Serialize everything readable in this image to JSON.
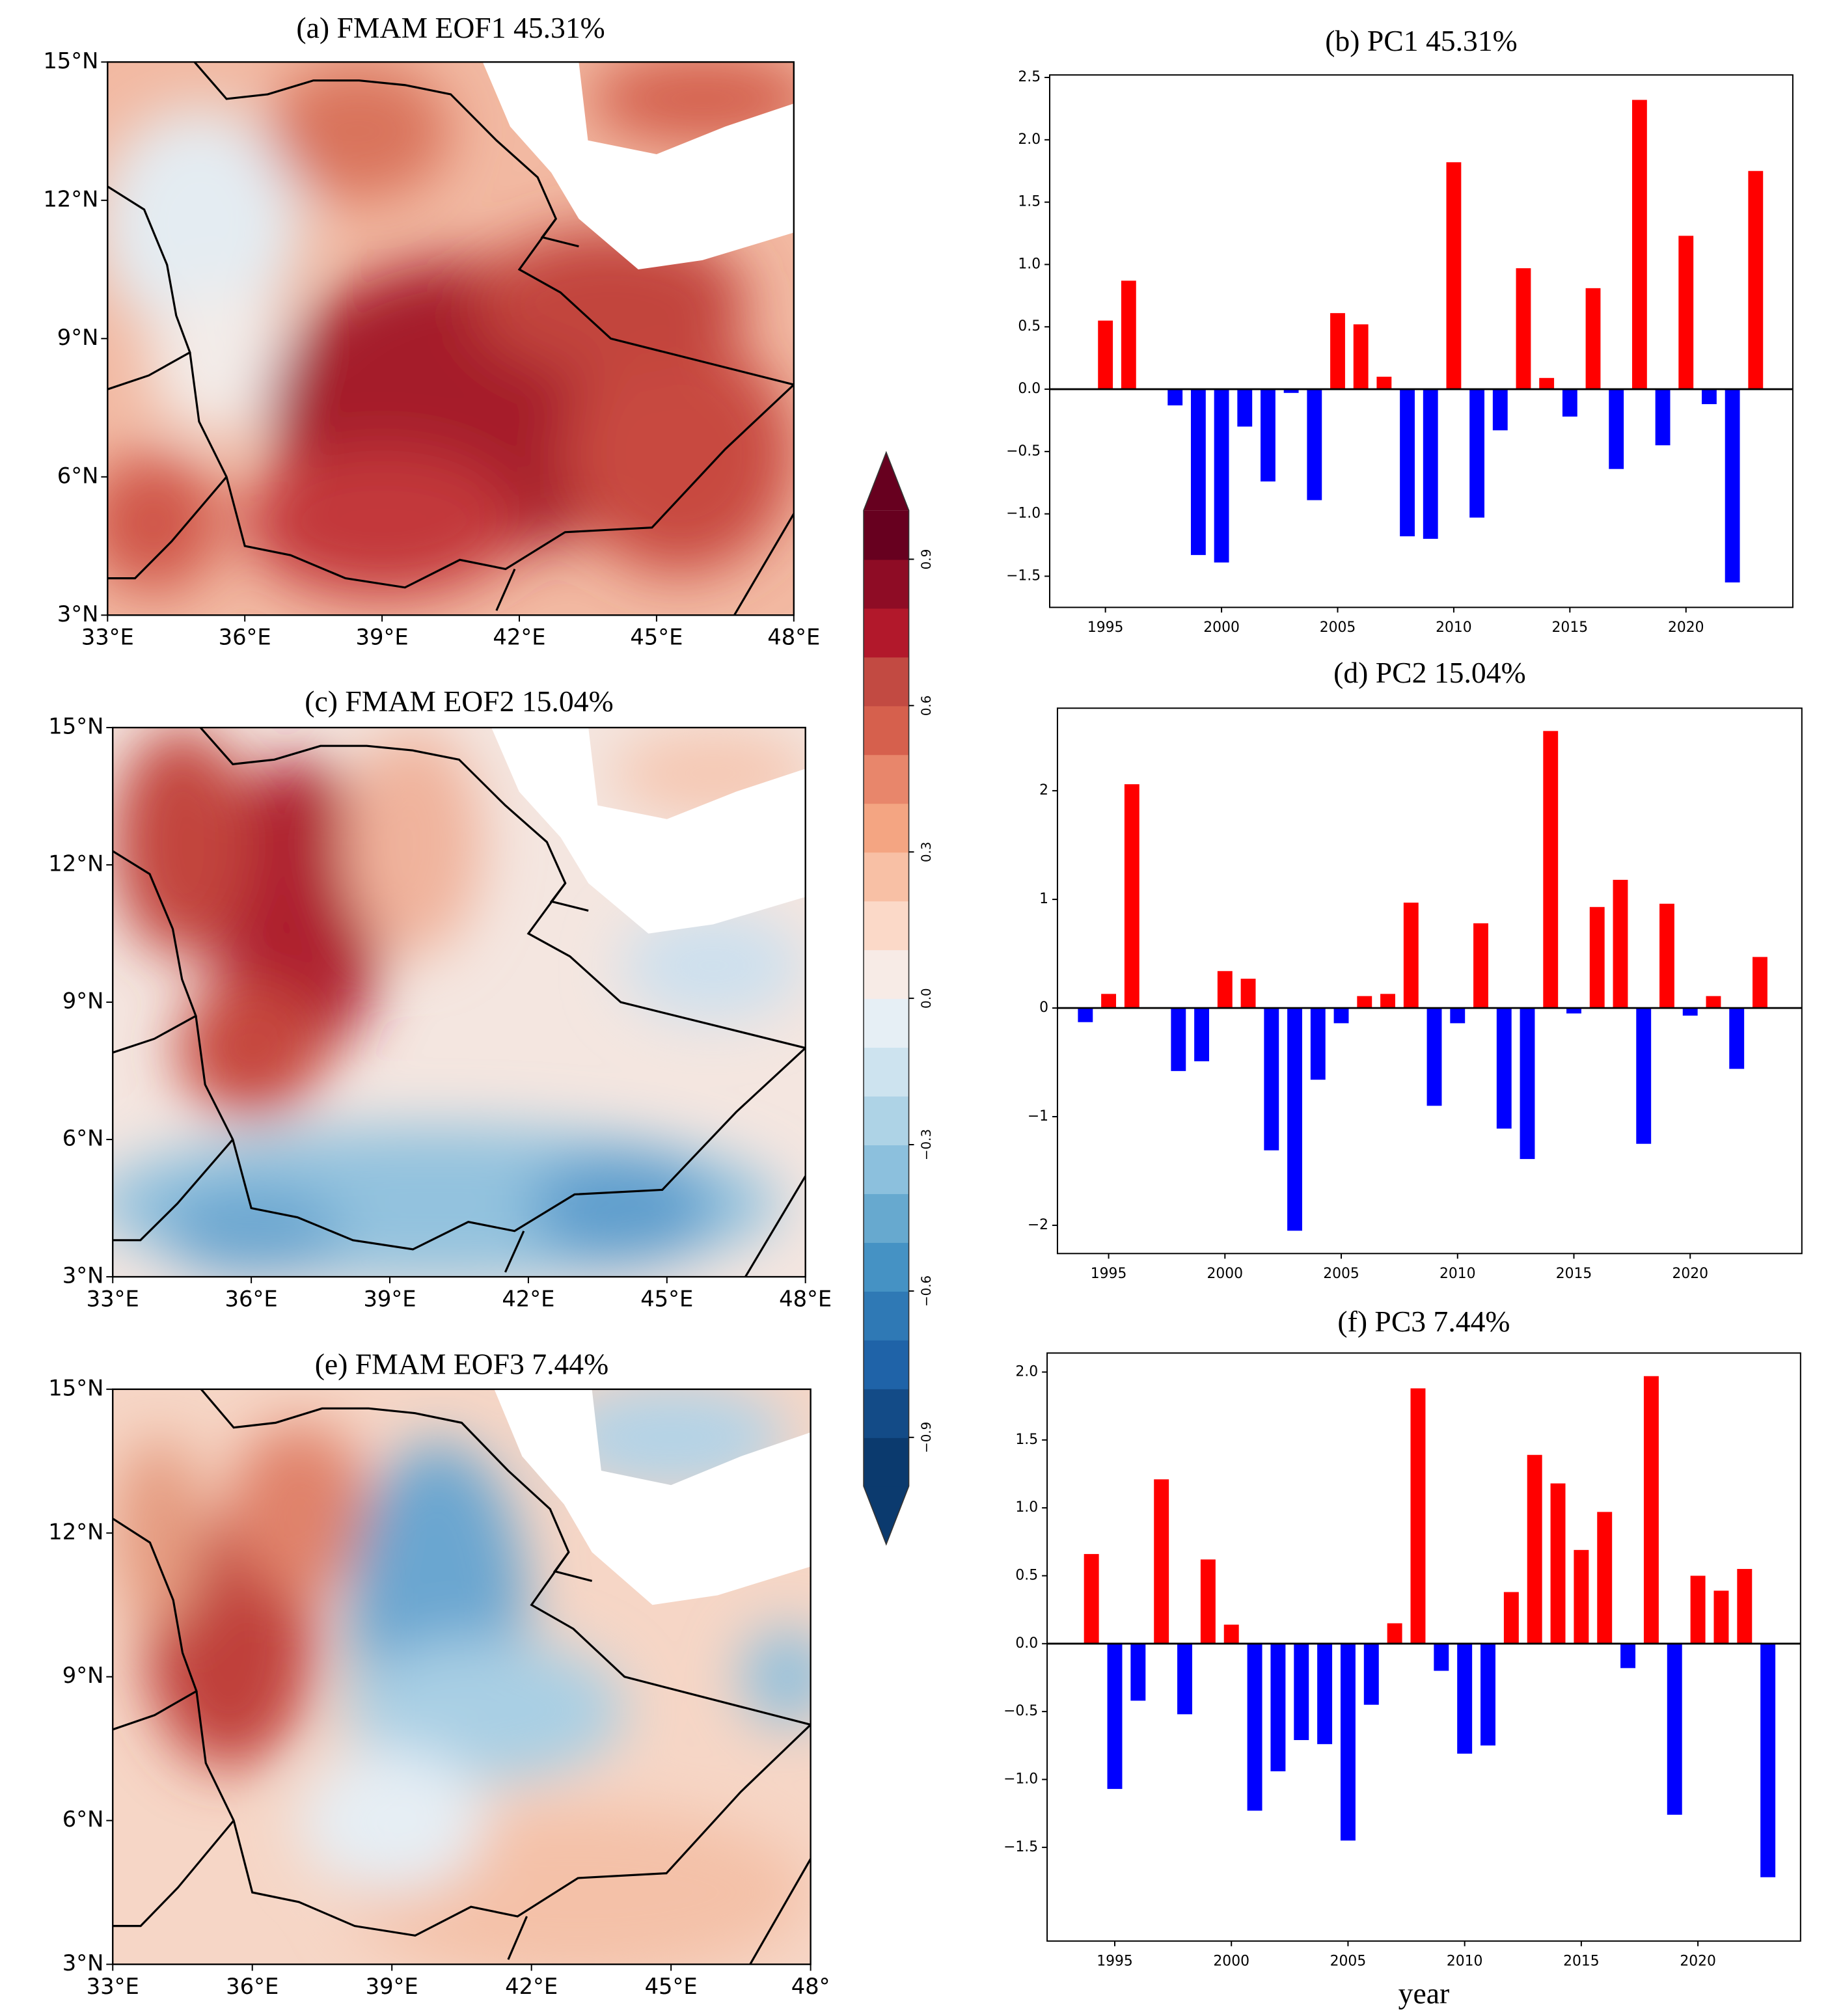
{
  "chart_data": [
    {
      "type": "map",
      "title": "(a) FMAM EOF1 45.31%",
      "xlim": [
        33,
        48
      ],
      "ylim": [
        3,
        15
      ],
      "xticks": [
        {
          "value": 33,
          "label": "33°E"
        },
        {
          "value": 36,
          "label": "36°E"
        },
        {
          "value": 39,
          "label": "39°E"
        },
        {
          "value": 42,
          "label": "42°E"
        },
        {
          "value": 45,
          "label": "45°E"
        },
        {
          "value": 48,
          "label": "48°E"
        }
      ],
      "yticks": [
        {
          "value": 3,
          "label": "3°N"
        },
        {
          "value": 6,
          "label": "6°N"
        },
        {
          "value": 9,
          "label": "9°N"
        },
        {
          "value": 12,
          "label": "12°N"
        },
        {
          "value": 15,
          "label": "15°N"
        }
      ]
    },
    {
      "type": "map",
      "title": "(c) FMAM EOF2 15.04%",
      "xlim": [
        33,
        48
      ],
      "ylim": [
        3,
        15
      ],
      "xticks": [
        {
          "value": 33,
          "label": "33°E"
        },
        {
          "value": 36,
          "label": "36°E"
        },
        {
          "value": 39,
          "label": "39°E"
        },
        {
          "value": 42,
          "label": "42°E"
        },
        {
          "value": 45,
          "label": "45°E"
        },
        {
          "value": 48,
          "label": "48°E"
        }
      ],
      "yticks": [
        {
          "value": 3,
          "label": "3°N"
        },
        {
          "value": 6,
          "label": "6°N"
        },
        {
          "value": 9,
          "label": "9°N"
        },
        {
          "value": 12,
          "label": "12°N"
        },
        {
          "value": 15,
          "label": "15°N"
        }
      ]
    },
    {
      "type": "map",
      "title": "(e) FMAM EOF3 7.44%",
      "xlim": [
        33,
        48
      ],
      "ylim": [
        3,
        15
      ],
      "xticks": [
        {
          "value": 33,
          "label": "33°E"
        },
        {
          "value": 36,
          "label": "36°E"
        },
        {
          "value": 39,
          "label": "39°E"
        },
        {
          "value": 42,
          "label": "42°E"
        },
        {
          "value": 45,
          "label": "45°E"
        },
        {
          "value": 48,
          "label": "48°"
        }
      ],
      "yticks": [
        {
          "value": 3,
          "label": "3°N"
        },
        {
          "value": 6,
          "label": "6°N"
        },
        {
          "value": 9,
          "label": "9°N"
        },
        {
          "value": 12,
          "label": "12°N"
        },
        {
          "value": 15,
          "label": "15°N"
        }
      ]
    },
    {
      "type": "colorbar",
      "lim": [
        -1,
        1
      ],
      "ticks": [
        {
          "value": -0.9,
          "label": "−0.9"
        },
        {
          "value": -0.6,
          "label": "−0.6"
        },
        {
          "value": -0.3,
          "label": "−0.3"
        },
        {
          "value": 0,
          "label": "0.0"
        },
        0.3,
        0.6,
        0.9
      ],
      "colors": [
        "#0b3a6e",
        "#134b87",
        "#1f63a8",
        "#2f79b5",
        "#4592c4",
        "#67a9cf",
        "#8cc0dd",
        "#aed3e6",
        "#cde3ef",
        "#e6eff5",
        "#f7ebe6",
        "#fbd9c8",
        "#f8c0a5",
        "#f4a582",
        "#e8866b",
        "#d6604d",
        "#c24a42",
        "#b2182b",
        "#8e0c25",
        "#67001f"
      ]
    },
    {
      "type": "bar",
      "title": "(b) PC1 45.31%",
      "positive_color": "#ff0000",
      "negative_color": "#0000ff",
      "x": [
        1995,
        1996,
        1997,
        1998,
        1999,
        2000,
        2001,
        2002,
        2003,
        2004,
        2005,
        2006,
        2007,
        2008,
        2009,
        2010,
        2011,
        2012,
        2013,
        2014,
        2015,
        2016,
        2017,
        2018,
        2019,
        2020,
        2021,
        2022,
        2023
      ],
      "values": [
        0.55,
        0.87,
        0,
        -0.13,
        -1.33,
        -1.39,
        -0.3,
        -0.74,
        -0.03,
        -0.89,
        0.61,
        0.52,
        0.1,
        -1.18,
        -1.2,
        1.82,
        -1.03,
        -0.33,
        0.97,
        0.09,
        -0.22,
        0.81,
        -0.64,
        2.32,
        -0.45,
        1.23,
        -0.12,
        -1.55,
        1.75
      ],
      "xlim": [
        1992.6,
        2024.6
      ],
      "xticks": [
        1995,
        2000,
        2005,
        2010,
        2015,
        2020
      ],
      "ylim": [
        -1.75,
        2.52
      ],
      "yticks": [
        {
          "value": -1.5,
          "label": "−1.5"
        },
        {
          "value": -1,
          "label": "−1.0"
        },
        {
          "value": -0.5,
          "label": "−0.5"
        },
        {
          "value": 0,
          "label": "0.0"
        },
        0.5,
        {
          "value": 1,
          "label": "1.0"
        },
        1.5,
        {
          "value": 2,
          "label": "2.0"
        },
        2.5
      ]
    },
    {
      "type": "bar",
      "title": "(d) PC2 15.04%",
      "positive_color": "#ff0000",
      "negative_color": "#0000ff",
      "x": [
        1994,
        1995,
        1996,
        1997,
        1998,
        1999,
        2000,
        2001,
        2002,
        2003,
        2004,
        2005,
        2006,
        2007,
        2008,
        2009,
        2010,
        2011,
        2012,
        2013,
        2014,
        2015,
        2016,
        2017,
        2018,
        2019,
        2020,
        2021,
        2022,
        2023
      ],
      "values": [
        -0.13,
        0.13,
        2.06,
        0,
        -0.58,
        -0.49,
        0.34,
        0.27,
        -1.31,
        -2.05,
        -0.66,
        -0.14,
        0.11,
        0.13,
        0.97,
        -0.9,
        -0.14,
        0.78,
        -1.11,
        -1.39,
        2.55,
        -0.05,
        0.93,
        1.18,
        -1.25,
        0.96,
        -0.07,
        0.11,
        -0.56,
        0.47
      ],
      "xlim": [
        1992.8,
        2024.8
      ],
      "xticks": [
        1995,
        2000,
        2005,
        2010,
        2015,
        2020
      ],
      "ylim": [
        -2.26,
        2.76
      ],
      "yticks": [
        {
          "value": -2,
          "label": "−2"
        },
        {
          "value": -1,
          "label": "−1"
        },
        0,
        1,
        2
      ]
    },
    {
      "type": "bar",
      "title": "(f) PC3 7.44%",
      "xlabel": "year",
      "positive_color": "#ff0000",
      "negative_color": "#0000ff",
      "x": [
        1994,
        1995,
        1996,
        1997,
        1998,
        1999,
        2000,
        2001,
        2002,
        2003,
        2004,
        2005,
        2006,
        2007,
        2008,
        2009,
        2010,
        2011,
        2012,
        2013,
        2014,
        2015,
        2016,
        2017,
        2018,
        2019,
        2020,
        2021,
        2022,
        2023
      ],
      "values": [
        0.66,
        -1.07,
        -0.42,
        1.21,
        -0.52,
        0.62,
        0.14,
        -1.23,
        -0.94,
        -0.71,
        -0.74,
        -1.45,
        -0.45,
        0.15,
        1.88,
        -0.2,
        -0.81,
        -0.75,
        0.38,
        1.39,
        1.18,
        0.69,
        0.97,
        -0.18,
        1.97,
        -1.26,
        0.5,
        0.39,
        0.55,
        -1.72
      ],
      "xlim": [
        1992.1,
        2024.4
      ],
      "xticks": [
        1995,
        2000,
        2005,
        2010,
        2015,
        2020
      ],
      "ylim": [
        -2.19,
        2.14
      ],
      "yticks": [
        {
          "value": -1.5,
          "label": "−1.5"
        },
        {
          "value": -1,
          "label": "−1.0"
        },
        {
          "value": -0.5,
          "label": "−0.5"
        },
        {
          "value": 0,
          "label": "0.0"
        },
        0.5,
        {
          "value": 1,
          "label": "1.0"
        },
        1.5,
        {
          "value": 2,
          "label": "2.0"
        }
      ]
    }
  ]
}
